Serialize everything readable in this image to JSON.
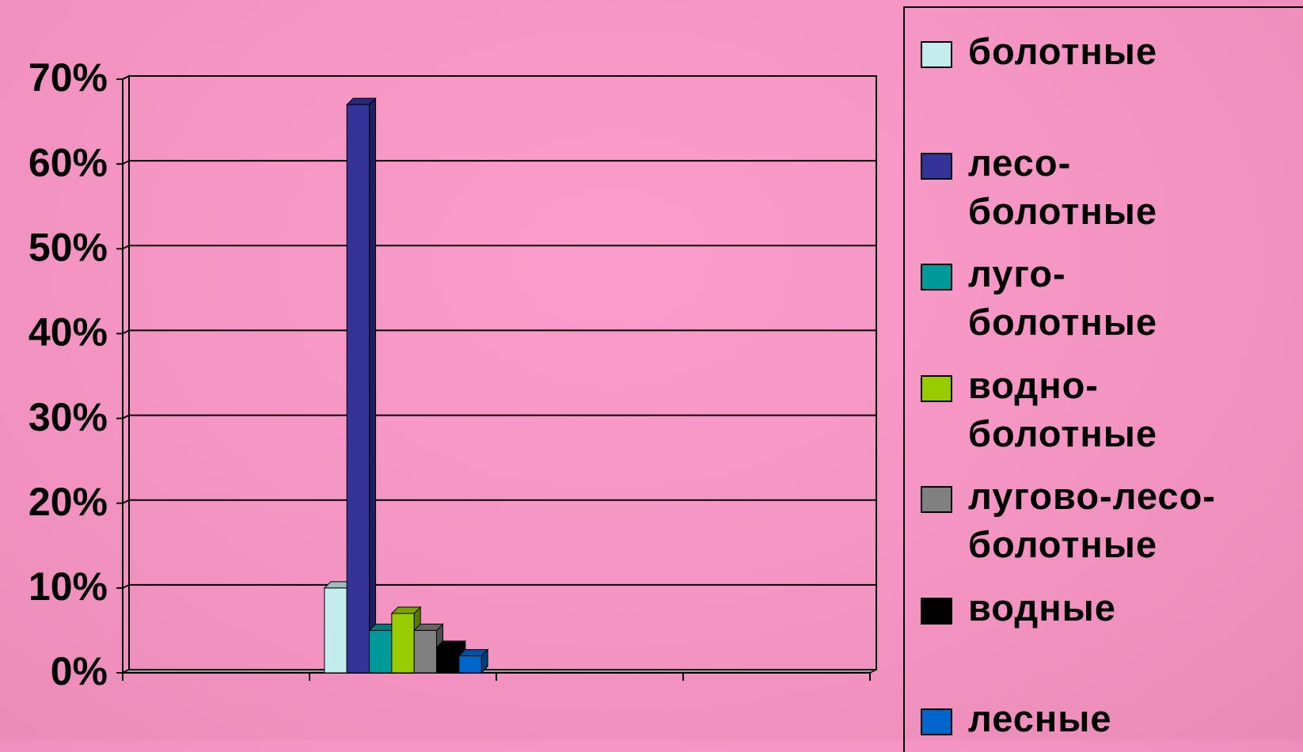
{
  "chart_data": {
    "type": "bar3d",
    "categories": [
      null,
      null,
      null,
      null
    ],
    "series": [
      {
        "name": "болотные",
        "color": "#c4ecec",
        "values": [
          null,
          10,
          null,
          null
        ]
      },
      {
        "name": "лесо-\nболотные",
        "color": "#333399",
        "values": [
          null,
          67,
          null,
          null
        ]
      },
      {
        "name": "луго-\nболотные",
        "color": "#009999",
        "values": [
          null,
          5,
          null,
          null
        ]
      },
      {
        "name": "водно-\nболотные",
        "color": "#99cc00",
        "values": [
          null,
          7,
          null,
          null
        ]
      },
      {
        "name": "лугово-лесо-\nболотные",
        "color": "#808080",
        "values": [
          null,
          5,
          null,
          null
        ]
      },
      {
        "name": "водные",
        "color": "#000000",
        "values": [
          null,
          3,
          null,
          null
        ]
      },
      {
        "name": "лесные",
        "color": "#0066cc",
        "values": [
          null,
          2,
          null,
          null
        ]
      }
    ],
    "ylim": [
      0,
      70
    ],
    "yticks": [
      {
        "value": 0,
        "label": "0%"
      },
      {
        "value": 10,
        "label": "10%"
      },
      {
        "value": 20,
        "label": "20%"
      },
      {
        "value": 30,
        "label": "30%"
      },
      {
        "value": 40,
        "label": "40%"
      },
      {
        "value": 50,
        "label": "50%"
      },
      {
        "value": 60,
        "label": "60%"
      },
      {
        "value": 70,
        "label": "70%"
      }
    ],
    "grid": true,
    "legend": "right"
  }
}
